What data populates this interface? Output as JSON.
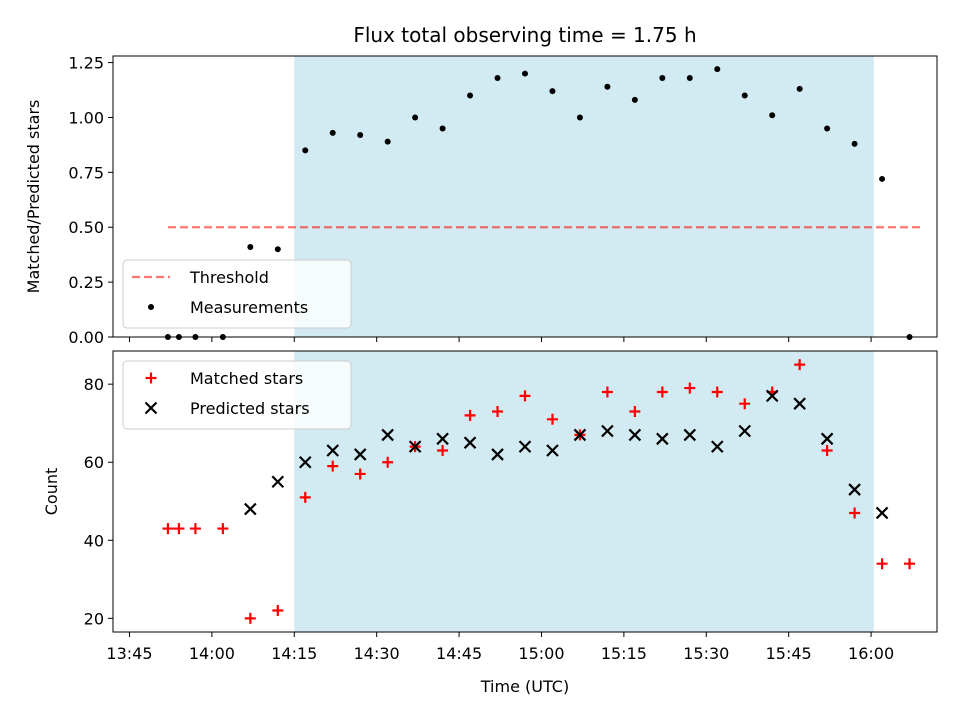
{
  "chart_data": {
    "type": "scatter",
    "title": "Flux total observing time = 1.75 h",
    "xlabel": "Time (UTC)",
    "x_tick_labels": [
      "13:45",
      "14:00",
      "14:15",
      "14:30",
      "14:45",
      "15:00",
      "15:15",
      "15:30",
      "15:45",
      "16:00"
    ],
    "x_tick_minutes": [
      825,
      840,
      855,
      870,
      885,
      900,
      915,
      930,
      945,
      960
    ],
    "xlim_minutes": [
      822,
      972
    ],
    "shaded_span_minutes": [
      855,
      960.5
    ],
    "colors": {
      "shade": "#add8e6",
      "threshold": "#ff0000",
      "measurement": "#000000",
      "matched": "#ff0000",
      "predicted": "#000000"
    },
    "panels": [
      {
        "id": "ratio",
        "ylabel": "Matched/Predicted stars",
        "ylim": [
          0.0,
          1.28
        ],
        "y_ticks": [
          0.0,
          0.25,
          0.5,
          0.75,
          1.0,
          1.25
        ],
        "y_tick_labels": [
          "0.00",
          "0.25",
          "0.50",
          "0.75",
          "1.00",
          "1.25"
        ],
        "legend": {
          "placement": "lower-left",
          "entries": [
            "Threshold",
            "Measurements"
          ]
        },
        "series": [
          {
            "name": "Threshold",
            "kind": "dashed-line",
            "x": [
              832,
              969
            ],
            "y": [
              0.5,
              0.5
            ]
          },
          {
            "name": "Measurements",
            "kind": "dot",
            "x": [
              832,
              834,
              837,
              842,
              847,
              852,
              857,
              862,
              867,
              872,
              877,
              882,
              887,
              892,
              897,
              902,
              907,
              912,
              917,
              922,
              927,
              932,
              937,
              942,
              947,
              952,
              957,
              962,
              967
            ],
            "y": [
              0.0,
              0.0,
              0.0,
              0.0,
              0.41,
              0.4,
              0.85,
              0.93,
              0.92,
              0.89,
              1.0,
              0.95,
              1.1,
              1.18,
              1.2,
              1.12,
              1.0,
              1.14,
              1.08,
              1.18,
              1.18,
              1.22,
              1.1,
              1.01,
              1.13,
              0.95,
              0.88,
              0.72,
              0.0
            ]
          }
        ]
      },
      {
        "id": "count",
        "ylabel": "Count",
        "ylim": [
          16.5,
          88.5
        ],
        "y_ticks": [
          20,
          40,
          60,
          80
        ],
        "y_tick_labels": [
          "20",
          "40",
          "60",
          "80"
        ],
        "legend": {
          "placement": "upper-left",
          "entries": [
            "Matched stars",
            "Predicted stars"
          ]
        },
        "series": [
          {
            "name": "Matched stars",
            "kind": "plus",
            "x": [
              832,
              834,
              837,
              842,
              847,
              852,
              857,
              862,
              867,
              872,
              877,
              882,
              887,
              892,
              897,
              902,
              907,
              912,
              917,
              922,
              927,
              932,
              937,
              942,
              947,
              952,
              957,
              962,
              967
            ],
            "y": [
              43,
              43,
              43,
              43,
              20,
              22,
              51,
              59,
              57,
              60,
              64,
              63,
              72,
              73,
              77,
              71,
              67,
              78,
              73,
              78,
              79,
              78,
              75,
              78,
              85,
              63,
              47,
              34,
              34
            ]
          },
          {
            "name": "Predicted stars",
            "kind": "cross",
            "x": [
              847,
              852,
              857,
              862,
              867,
              872,
              877,
              882,
              887,
              892,
              897,
              902,
              907,
              912,
              917,
              922,
              927,
              932,
              937,
              942,
              947,
              952,
              957,
              962
            ],
            "y": [
              48,
              55,
              60,
              63,
              62,
              67,
              64,
              66,
              65,
              62,
              64,
              63,
              67,
              68,
              67,
              66,
              67,
              64,
              68,
              77,
              75,
              66,
              53,
              47
            ]
          }
        ]
      }
    ]
  }
}
